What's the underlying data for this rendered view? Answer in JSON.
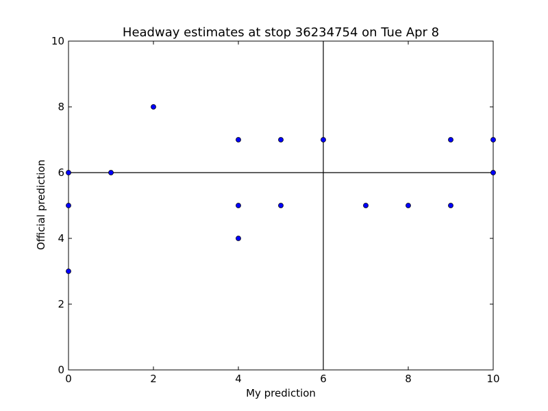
{
  "chart_data": {
    "type": "scatter",
    "title": "Headway estimates at stop 36234754 on Tue Apr 8",
    "xlabel": "My prediction",
    "ylabel": "Official prediction",
    "xlim": [
      0,
      10
    ],
    "ylim": [
      0,
      10
    ],
    "xticks": [
      0,
      2,
      4,
      6,
      8,
      10
    ],
    "yticks": [
      0,
      2,
      4,
      6,
      8,
      10
    ],
    "grid": false,
    "reference_lines": {
      "x": 6,
      "y": 6
    },
    "marker_color": "#0000ff",
    "series": [
      {
        "points": [
          [
            0,
            6
          ],
          [
            0,
            5
          ],
          [
            0,
            3
          ],
          [
            1,
            6
          ],
          [
            2,
            8
          ],
          [
            4,
            7
          ],
          [
            4,
            5
          ],
          [
            4,
            4
          ],
          [
            5,
            7
          ],
          [
            5,
            5
          ],
          [
            6,
            7
          ],
          [
            7,
            5
          ],
          [
            8,
            5
          ],
          [
            9,
            7
          ],
          [
            9,
            5
          ],
          [
            10,
            7
          ],
          [
            10,
            6
          ]
        ]
      }
    ]
  }
}
